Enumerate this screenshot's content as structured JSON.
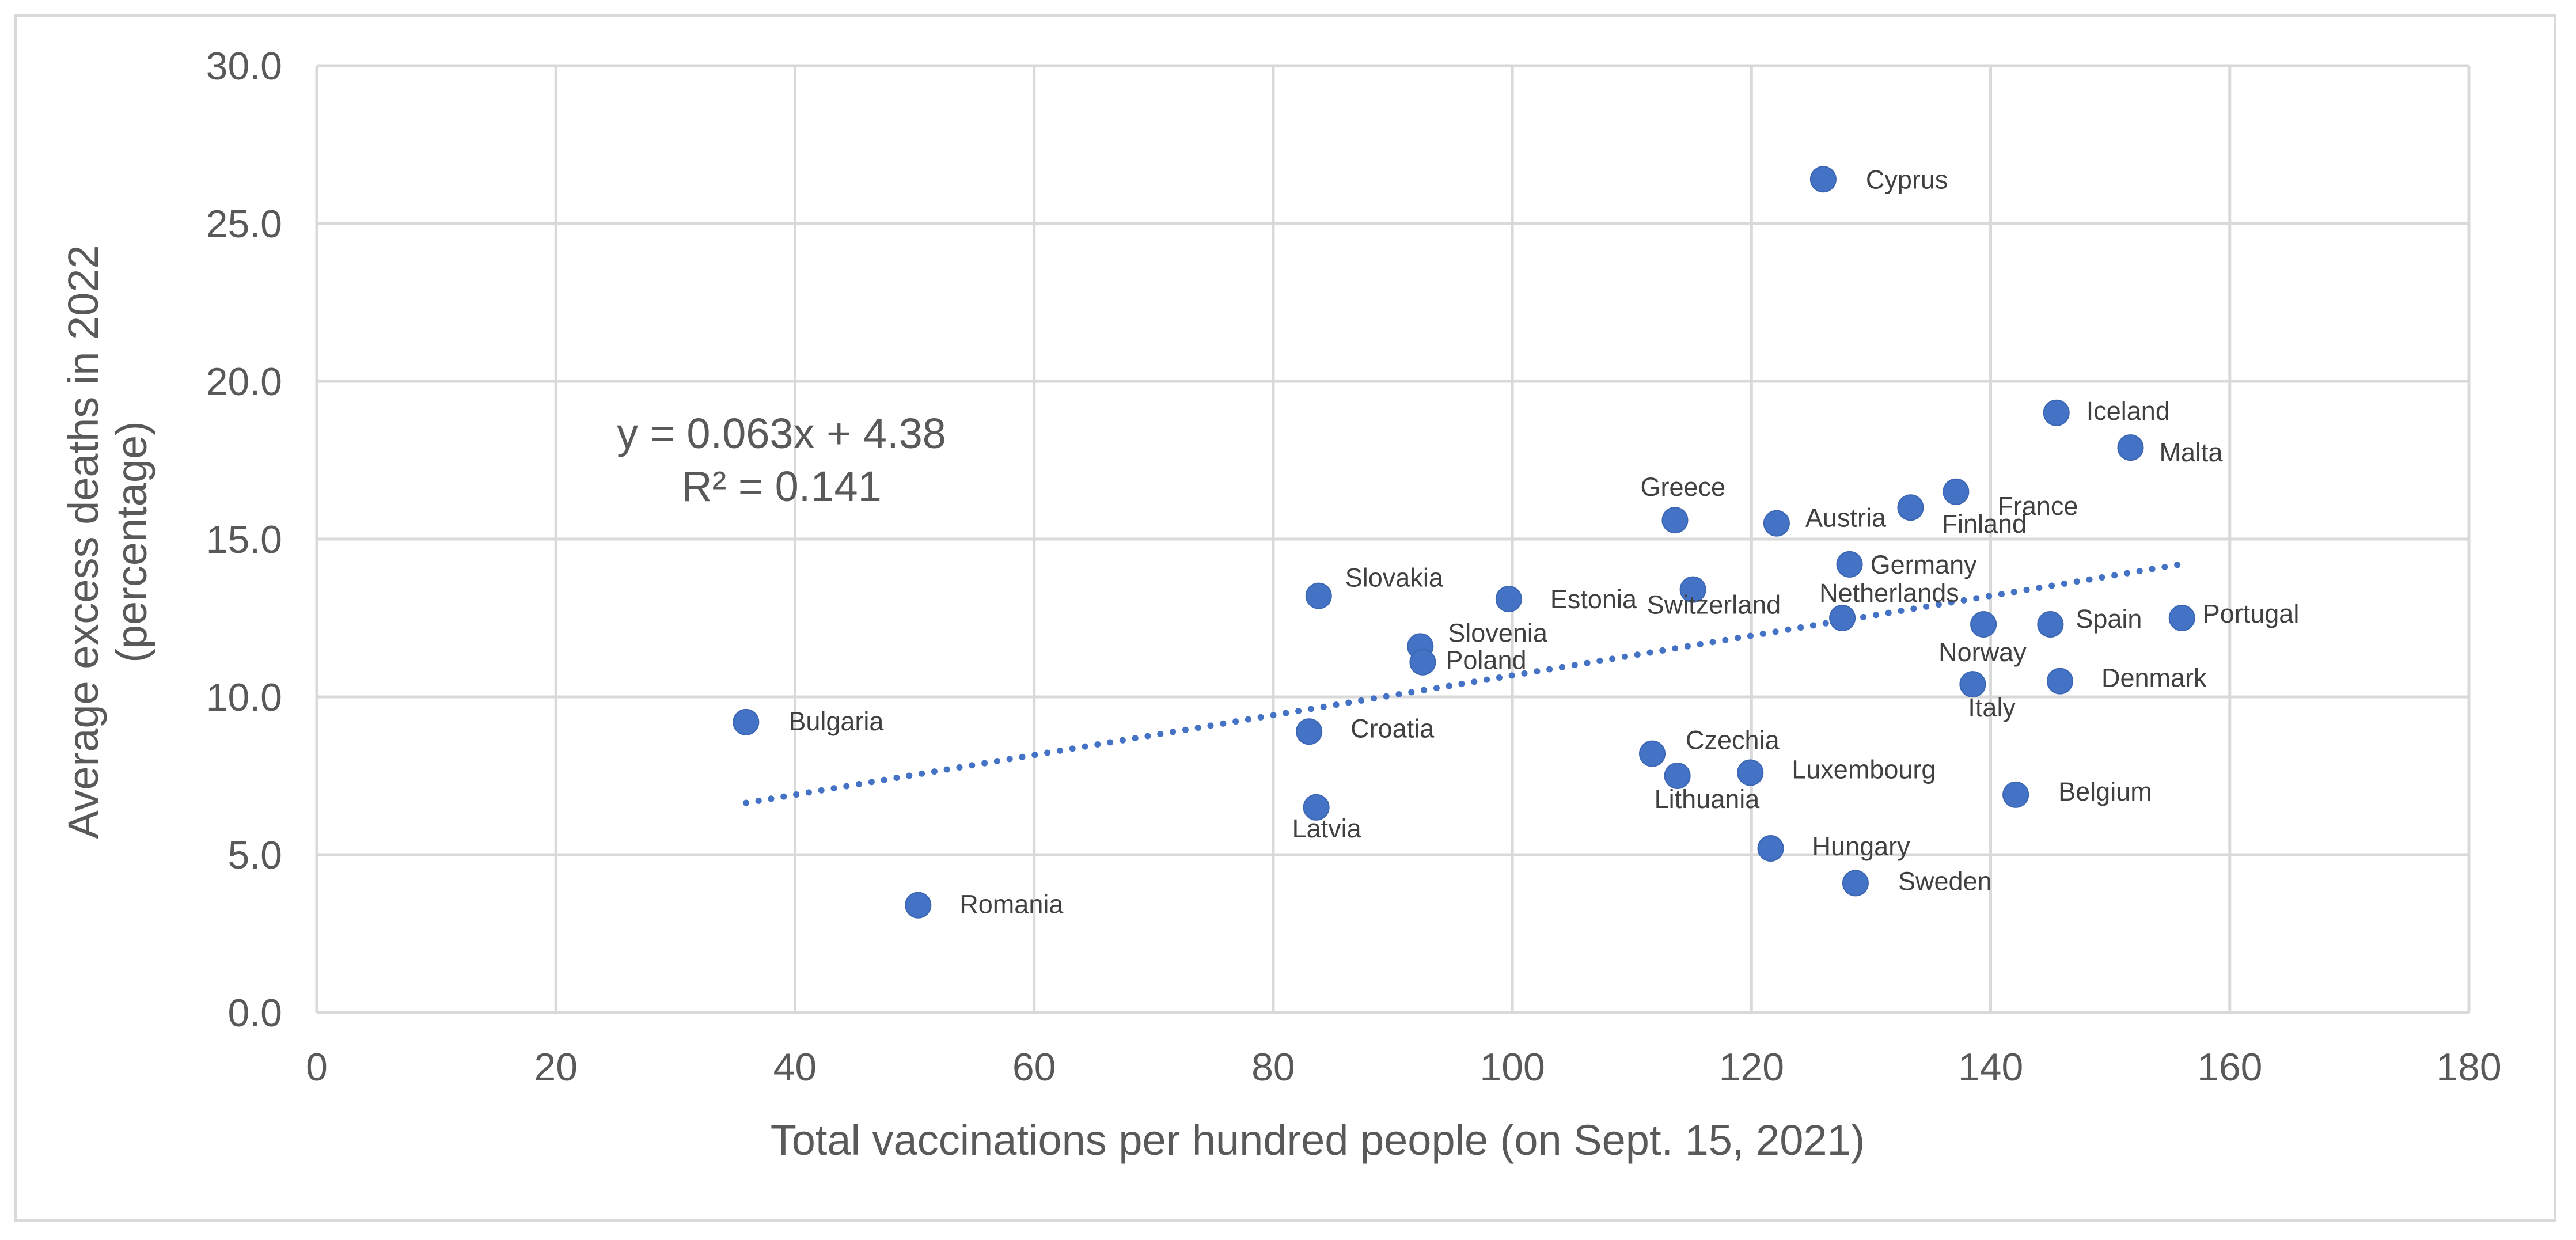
{
  "chart_data": {
    "type": "scatter",
    "title": "",
    "xlabel": "Total vaccinations per hundred people (on Sept. 15, 2021)",
    "ylabel_lines": [
      "Average excess deaths in 2022",
      "(percentage)"
    ],
    "xlim": [
      0,
      180
    ],
    "ylim": [
      0,
      30
    ],
    "x_ticks": [
      0,
      20,
      40,
      60,
      80,
      100,
      120,
      140,
      160,
      180
    ],
    "y_ticks": [
      0,
      5,
      10,
      15,
      20,
      25,
      30
    ],
    "x_tick_labels": [
      "0",
      "20",
      "40",
      "60",
      "80",
      "100",
      "120",
      "140",
      "160",
      "180"
    ],
    "y_tick_labels": [
      "0.0",
      "5.0",
      "10.0",
      "15.0",
      "20.0",
      "25.0",
      "30.0"
    ],
    "grid": true,
    "point_color": "#4472c4",
    "points": [
      {
        "name": "Cyprus",
        "x": 126.0,
        "y": 26.4
      },
      {
        "name": "Iceland",
        "x": 145.5,
        "y": 19.0
      },
      {
        "name": "Malta",
        "x": 151.7,
        "y": 17.9
      },
      {
        "name": "France",
        "x": 137.1,
        "y": 16.5
      },
      {
        "name": "Finland",
        "x": 133.3,
        "y": 16.0
      },
      {
        "name": "Greece",
        "x": 113.6,
        "y": 15.6
      },
      {
        "name": "Austria",
        "x": 122.1,
        "y": 15.5
      },
      {
        "name": "Germany",
        "x": 128.2,
        "y": 14.2
      },
      {
        "name": "Switzerland",
        "x": 115.1,
        "y": 13.4
      },
      {
        "name": "Netherlands",
        "x": 127.6,
        "y": 12.5
      },
      {
        "name": "Slovakia",
        "x": 83.8,
        "y": 13.2
      },
      {
        "name": "Estonia",
        "x": 99.7,
        "y": 13.1
      },
      {
        "name": "Norway",
        "x": 139.4,
        "y": 12.3
      },
      {
        "name": "Spain",
        "x": 145.0,
        "y": 12.3
      },
      {
        "name": "Portugal",
        "x": 156.0,
        "y": 12.5
      },
      {
        "name": "Slovenia",
        "x": 92.3,
        "y": 11.6
      },
      {
        "name": "Poland",
        "x": 92.5,
        "y": 11.1
      },
      {
        "name": "Italy",
        "x": 138.5,
        "y": 10.4
      },
      {
        "name": "Denmark",
        "x": 145.8,
        "y": 10.5
      },
      {
        "name": "Bulgaria",
        "x": 35.9,
        "y": 9.2
      },
      {
        "name": "Croatia",
        "x": 83.0,
        "y": 8.9
      },
      {
        "name": "Czechia",
        "x": 111.7,
        "y": 8.2
      },
      {
        "name": "Lithuania",
        "x": 113.8,
        "y": 7.5
      },
      {
        "name": "Luxembourg",
        "x": 119.9,
        "y": 7.6
      },
      {
        "name": "Belgium",
        "x": 142.1,
        "y": 6.9
      },
      {
        "name": "Latvia",
        "x": 83.6,
        "y": 6.5
      },
      {
        "name": "Hungary",
        "x": 121.6,
        "y": 5.2
      },
      {
        "name": "Sweden",
        "x": 128.7,
        "y": 4.1
      },
      {
        "name": "Romania",
        "x": 50.3,
        "y": 3.4
      }
    ],
    "trendline": {
      "style": "dotted",
      "slope": 0.063,
      "intercept": 4.38,
      "x_range": [
        35.9,
        156.0
      ],
      "equation_text": "y = 0.063x + 4.38",
      "r2_text": "R² = 0.141"
    }
  }
}
